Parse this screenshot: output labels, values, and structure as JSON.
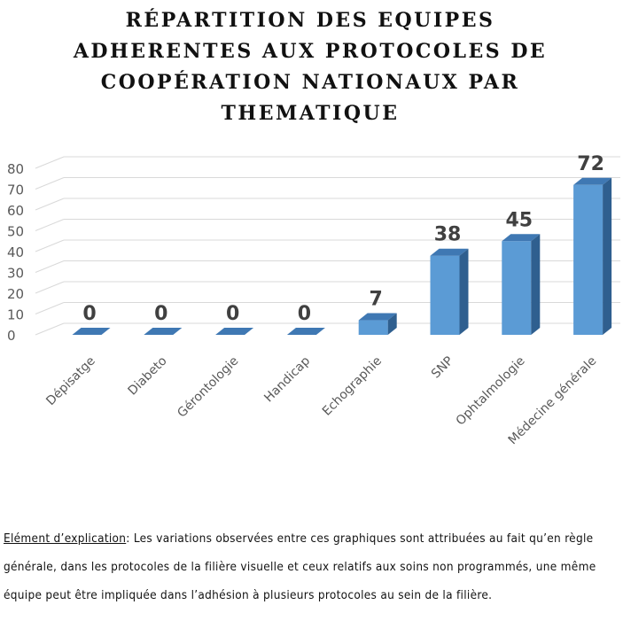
{
  "chart_data": {
    "type": "bar",
    "title": "RÉPARTITION DES EQUIPES ADHERENTES AUX PROTOCOLES DE COOPÉRATION NATIONAUX PAR THEMATIQUE",
    "categories": [
      "Dépisatge",
      "Diabeto",
      "Gérontologie",
      "Handicap",
      "Echographie",
      "SNP",
      "Ophtalmologie",
      "Médecine générale"
    ],
    "values": [
      0,
      0,
      0,
      0,
      7,
      38,
      45,
      72
    ],
    "ylim": [
      0,
      80
    ],
    "yticks": [
      0,
      10,
      20,
      30,
      40,
      50,
      60,
      70,
      80
    ],
    "grid": true,
    "bar_color": "#5b9bd5",
    "data_labels": true
  },
  "explanation": {
    "lead": "Elément d’explication",
    "text": ": Les variations observées entre ces graphiques sont attribuées au fait qu’en règle générale, dans les protocoles de la filière visuelle et ceux relatifs aux soins non programmés, une même équipe peut être impliquée dans l’adhésion à plusieurs protocoles au sein de la filière."
  }
}
